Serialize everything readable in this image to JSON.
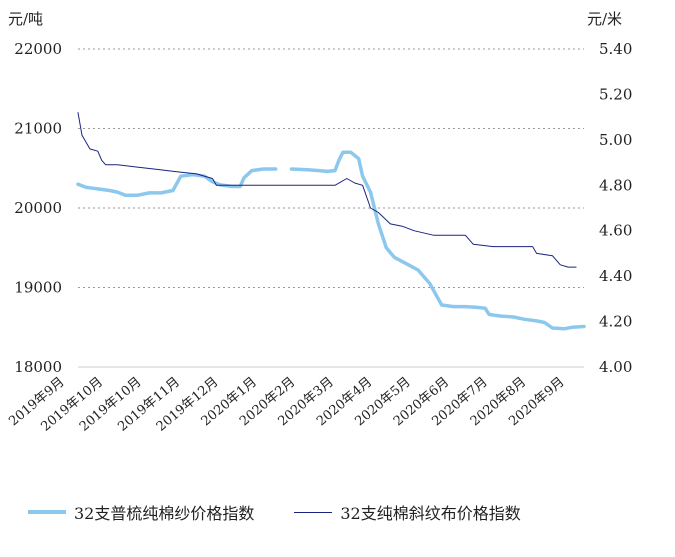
{
  "chart_data": {
    "type": "line",
    "left_axis": {
      "unit": "元/吨",
      "ticks": [
        "18000",
        "19000",
        "20000",
        "21000",
        "22000"
      ],
      "range": [
        18000,
        22000
      ]
    },
    "right_axis": {
      "unit": "元/米",
      "ticks": [
        "4.00",
        "4.20",
        "4.40",
        "4.60",
        "4.80",
        "5.00",
        "5.20",
        "5.40"
      ],
      "range": [
        4.0,
        5.4
      ]
    },
    "x_labels": [
      "2019年9月",
      "2019年10月",
      "2019年10月",
      "2019年11月",
      "2019年12月",
      "2020年1月",
      "2020年2月",
      "2020年3月",
      "2020年4月",
      "2020年5月",
      "2020年6月",
      "2020年7月",
      "2020年8月",
      "2020年9月"
    ],
    "x_range": [
      0,
      12.8
    ],
    "grid": "horizontal-dotted",
    "legend_position": "bottom",
    "series": [
      {
        "name": "32支普梳纯棉纱价格指数",
        "axis": "left",
        "color": "#8cc8ee",
        "points": [
          [
            0,
            20300
          ],
          [
            0.2,
            20260
          ],
          [
            0.5,
            20240
          ],
          [
            0.8,
            20220
          ],
          [
            1.0,
            20200
          ],
          [
            1.2,
            20160
          ],
          [
            1.5,
            20160
          ],
          [
            1.8,
            20190
          ],
          [
            2.1,
            20190
          ],
          [
            2.4,
            20220
          ],
          [
            2.6,
            20400
          ],
          [
            2.9,
            20420
          ],
          [
            3.2,
            20400
          ],
          [
            3.4,
            20330
          ],
          [
            3.6,
            20290
          ],
          [
            3.9,
            20270
          ],
          [
            4.1,
            20270
          ],
          [
            4.2,
            20380
          ],
          [
            4.4,
            20470
          ],
          [
            4.7,
            20490
          ],
          [
            5.0,
            20490
          ],
          [
            null,
            null
          ],
          [
            5.4,
            20490
          ],
          [
            5.8,
            20480
          ],
          [
            6.1,
            20470
          ],
          [
            6.3,
            20460
          ],
          [
            6.5,
            20470
          ],
          [
            6.6,
            20600
          ],
          [
            6.7,
            20700
          ],
          [
            6.9,
            20700
          ],
          [
            7.1,
            20620
          ],
          [
            7.2,
            20400
          ],
          [
            7.4,
            20200
          ],
          [
            7.6,
            19800
          ],
          [
            7.8,
            19500
          ],
          [
            8.0,
            19380
          ],
          [
            8.3,
            19300
          ],
          [
            8.6,
            19220
          ],
          [
            8.9,
            19050
          ],
          [
            9.1,
            18870
          ],
          [
            9.2,
            18780
          ],
          [
            9.5,
            18760
          ],
          [
            9.8,
            18760
          ],
          [
            10.1,
            18750
          ],
          [
            10.3,
            18740
          ],
          [
            10.4,
            18660
          ],
          [
            10.7,
            18640
          ],
          [
            11.0,
            18630
          ],
          [
            11.3,
            18600
          ],
          [
            11.6,
            18580
          ],
          [
            11.8,
            18560
          ],
          [
            12.0,
            18490
          ],
          [
            12.3,
            18480
          ],
          [
            12.5,
            18500
          ],
          [
            12.8,
            18510
          ]
        ]
      },
      {
        "name": "32支纯棉斜纹布价格指数",
        "axis": "right",
        "color": "#1a237e",
        "points": [
          [
            0,
            5.12
          ],
          [
            0.1,
            5.02
          ],
          [
            0.3,
            4.96
          ],
          [
            0.5,
            4.95
          ],
          [
            0.6,
            4.91
          ],
          [
            0.7,
            4.89
          ],
          [
            1.0,
            4.89
          ],
          [
            1.5,
            4.88
          ],
          [
            2.0,
            4.87
          ],
          [
            2.5,
            4.86
          ],
          [
            3.0,
            4.85
          ],
          [
            3.4,
            4.83
          ],
          [
            3.5,
            4.8
          ],
          [
            4.0,
            4.8
          ],
          [
            5.0,
            4.8
          ],
          [
            6.0,
            4.8
          ],
          [
            6.5,
            4.8
          ],
          [
            6.8,
            4.83
          ],
          [
            7.0,
            4.81
          ],
          [
            7.2,
            4.8
          ],
          [
            7.4,
            4.7
          ],
          [
            7.6,
            4.68
          ],
          [
            7.9,
            4.63
          ],
          [
            8.2,
            4.62
          ],
          [
            8.5,
            4.6
          ],
          [
            9.0,
            4.58
          ],
          [
            9.5,
            4.58
          ],
          [
            9.8,
            4.58
          ],
          [
            10.0,
            4.54
          ],
          [
            10.5,
            4.53
          ],
          [
            11.0,
            4.53
          ],
          [
            11.5,
            4.53
          ],
          [
            11.6,
            4.5
          ],
          [
            12.0,
            4.49
          ],
          [
            12.2,
            4.45
          ],
          [
            12.4,
            4.44
          ],
          [
            12.6,
            4.44
          ],
          [
            null,
            null
          ],
          [
            12.78,
            4.44
          ]
        ]
      }
    ]
  }
}
